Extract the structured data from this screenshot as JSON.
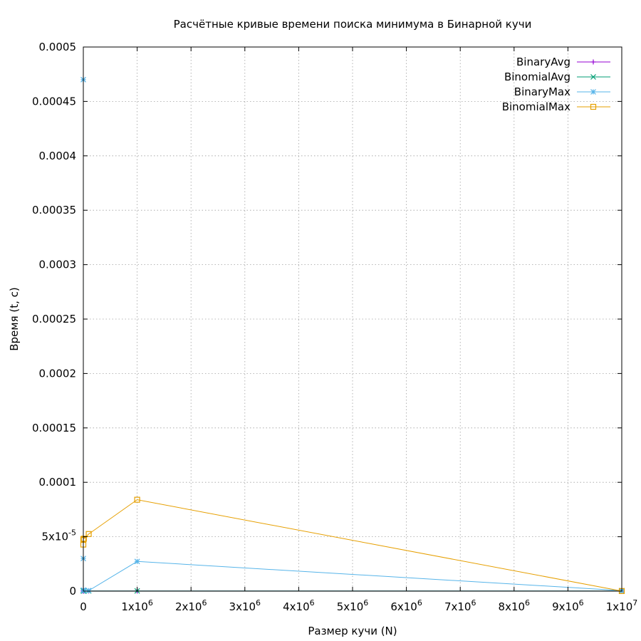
{
  "chart_data": {
    "type": "line",
    "title": "Расчётные кривые времени поиска минимума в Бинарной кучи",
    "xlabel": "Размер кучи (N)",
    "ylabel": "Время (t, c)",
    "xlim": [
      0,
      10000000
    ],
    "ylim": [
      0,
      0.0005
    ],
    "grid": true,
    "legend_position": "top-right",
    "x_ticks": [
      {
        "value": 0,
        "base": "0",
        "exp": ""
      },
      {
        "value": 1000000,
        "base": "1x10",
        "exp": "6"
      },
      {
        "value": 2000000,
        "base": "2x10",
        "exp": "6"
      },
      {
        "value": 3000000,
        "base": "3x10",
        "exp": "6"
      },
      {
        "value": 4000000,
        "base": "4x10",
        "exp": "6"
      },
      {
        "value": 5000000,
        "base": "5x10",
        "exp": "6"
      },
      {
        "value": 6000000,
        "base": "6x10",
        "exp": "6"
      },
      {
        "value": 7000000,
        "base": "7x10",
        "exp": "6"
      },
      {
        "value": 8000000,
        "base": "8x10",
        "exp": "6"
      },
      {
        "value": 9000000,
        "base": "9x10",
        "exp": "6"
      },
      {
        "value": 10000000,
        "base": "1x10",
        "exp": "7"
      }
    ],
    "y_ticks": [
      {
        "value": 0,
        "base": "0",
        "exp": ""
      },
      {
        "value": 5e-05,
        "base": "5x10",
        "exp": "-5"
      },
      {
        "value": 0.0001,
        "base": "0.0001",
        "exp": ""
      },
      {
        "value": 0.00015,
        "base": "0.00015",
        "exp": ""
      },
      {
        "value": 0.0002,
        "base": "0.0002",
        "exp": ""
      },
      {
        "value": 0.00025,
        "base": "0.00025",
        "exp": ""
      },
      {
        "value": 0.0003,
        "base": "0.0003",
        "exp": ""
      },
      {
        "value": 0.00035,
        "base": "0.00035",
        "exp": ""
      },
      {
        "value": 0.0004,
        "base": "0.0004",
        "exp": ""
      },
      {
        "value": 0.00045,
        "base": "0.00045",
        "exp": ""
      },
      {
        "value": 0.0005,
        "base": "0.0005",
        "exp": ""
      }
    ],
    "series": [
      {
        "name": "BinaryAvg",
        "color": "#9400d3",
        "marker": "plus",
        "x": [
          10,
          100,
          1000,
          10000,
          100000,
          1000000,
          10000000
        ],
        "y": [
          2e-07,
          1e-07,
          1e-07,
          1e-07,
          1e-07,
          1e-07,
          1e-07
        ]
      },
      {
        "name": "BinomialAvg",
        "color": "#009e73",
        "marker": "cross",
        "x": [
          10,
          100,
          1000,
          10000,
          100000,
          1000000,
          10000000
        ],
        "y": [
          3e-07,
          2e-07,
          2e-07,
          2e-07,
          2e-07,
          2e-07,
          2e-07
        ]
      },
      {
        "name": "BinaryMax",
        "color": "#56b4e9",
        "marker": "star",
        "x": [
          10,
          100,
          1000,
          10000,
          100000,
          1000000,
          10000000
        ],
        "y": [
          0.00047,
          3e-05,
          1e-06,
          5e-07,
          5e-07,
          2.73e-05,
          5e-07
        ]
      },
      {
        "name": "BinomialMax",
        "color": "#e69f00",
        "marker": "square",
        "x": [
          10,
          100,
          1000,
          10000,
          100000,
          1000000,
          10000000
        ],
        "y": [
          4.28e-05,
          4.71e-05,
          4.78e-05,
          4.82e-05,
          5.25e-05,
          8.4e-05,
          1e-07
        ]
      }
    ]
  }
}
